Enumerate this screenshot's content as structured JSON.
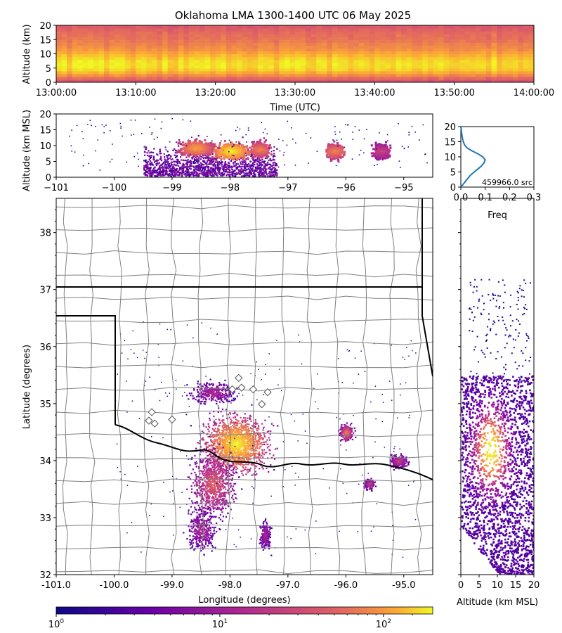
{
  "chart_data": [
    {
      "panel": "time-altitude",
      "type": "heatmap",
      "title": "Oklahoma LMA 1300-1400 UTC 06 May 2025",
      "xlabel": "Time (UTC)",
      "ylabel": "Altitude (km)",
      "xlim": [
        "13:00:00",
        "14:00:00"
      ],
      "ylim": [
        0,
        20
      ],
      "xticks": [
        "13:00:00",
        "13:10:00",
        "13:20:00",
        "13:30:00",
        "13:40:00",
        "13:50:00",
        "14:00:00"
      ],
      "yticks": [
        0,
        5,
        10,
        15,
        20
      ],
      "profile_rows": [
        0.2,
        0.35,
        0.55,
        0.75,
        0.92,
        1.0,
        1.0,
        0.98,
        0.9,
        0.8,
        0.7,
        0.6,
        0.55,
        0.5,
        0.45,
        0.4,
        0.38,
        0.35,
        0.3,
        0.25
      ]
    },
    {
      "panel": "longitude-altitude",
      "type": "heatmap",
      "xlabel": "",
      "ylabel": "Altitude (km MSL)",
      "xlim": [
        -101,
        -94.5
      ],
      "ylim": [
        0,
        20
      ],
      "xticks": [
        "−101",
        "−100",
        "−99",
        "−98",
        "−97",
        "−96",
        "−95"
      ],
      "yticks": [
        0,
        5,
        10,
        15,
        20
      ],
      "cores": [
        {
          "lon": -98.0,
          "alt": 8.5,
          "intensity": 1.0
        },
        {
          "lon": -98.6,
          "alt": 9.5,
          "intensity": 0.8
        },
        {
          "lon": -97.5,
          "alt": 9.0,
          "intensity": 0.7
        },
        {
          "lon": -96.2,
          "alt": 8.5,
          "intensity": 0.7
        },
        {
          "lon": -95.4,
          "alt": 8.5,
          "intensity": 0.5
        }
      ]
    },
    {
      "panel": "altitude-histogram",
      "type": "line",
      "xlabel": "Freq",
      "ylabel": "",
      "xlim": [
        0,
        0.3
      ],
      "ylim": [
        0,
        20
      ],
      "xticks": [
        "0.0",
        "0.1",
        "0.2",
        "0.3"
      ],
      "yticks": [
        0,
        5,
        10,
        15,
        20
      ],
      "annotation": "459966.0 src",
      "series": [
        {
          "color": "#1f77b4",
          "altitude": [
            0,
            1,
            2,
            3,
            4,
            5,
            6,
            7,
            8,
            9,
            10,
            11,
            12,
            13,
            14,
            15,
            16,
            17,
            18,
            19,
            20
          ],
          "freq": [
            0.0,
            0.01,
            0.02,
            0.03,
            0.04,
            0.055,
            0.07,
            0.085,
            0.095,
            0.1,
            0.09,
            0.07,
            0.045,
            0.025,
            0.015,
            0.01,
            0.007,
            0.005,
            0.003,
            0.002,
            0.0
          ]
        }
      ]
    },
    {
      "panel": "plan-view",
      "type": "heatmap",
      "xlabel": "Longitude (degrees)",
      "ylabel": "Latitude (degrees)",
      "xlim": [
        -101,
        -94.5
      ],
      "ylim": [
        32,
        38.6
      ],
      "xticks": [
        "-101.0",
        "-100.0",
        "-99.0",
        "-98.0",
        "-97.0",
        "-96.0",
        "-95.0"
      ],
      "yticks": [
        "32",
        "33",
        "34",
        "35",
        "36",
        "37",
        "38"
      ],
      "stations": [
        {
          "lon": -97.96,
          "lat": 35.25
        },
        {
          "lon": -97.8,
          "lat": 35.28
        },
        {
          "lon": -97.6,
          "lat": 35.25
        },
        {
          "lon": -97.85,
          "lat": 35.45
        },
        {
          "lon": -97.35,
          "lat": 35.2
        },
        {
          "lon": -97.45,
          "lat": 34.99
        },
        {
          "lon": -99.35,
          "lat": 34.85
        },
        {
          "lon": -99.4,
          "lat": 34.7
        },
        {
          "lon": -99.3,
          "lat": 34.65
        },
        {
          "lon": -99.0,
          "lat": 34.72
        }
      ],
      "clusters": [
        {
          "lon": -97.9,
          "lat": 34.3,
          "spread_lon": 0.9,
          "spread_lat": 0.8,
          "intensity": 1.0
        },
        {
          "lon": -98.3,
          "lat": 33.6,
          "spread_lon": 0.6,
          "spread_lat": 0.9,
          "intensity": 0.6
        },
        {
          "lon": -98.5,
          "lat": 32.8,
          "spread_lon": 0.4,
          "spread_lat": 0.6,
          "intensity": 0.4
        },
        {
          "lon": -97.4,
          "lat": 32.7,
          "spread_lon": 0.15,
          "spread_lat": 0.4,
          "intensity": 0.4
        },
        {
          "lon": -96.0,
          "lat": 34.5,
          "spread_lon": 0.18,
          "spread_lat": 0.22,
          "intensity": 0.7
        },
        {
          "lon": -95.1,
          "lat": 34.0,
          "spread_lon": 0.25,
          "spread_lat": 0.2,
          "intensity": 0.5
        },
        {
          "lon": -95.6,
          "lat": 33.6,
          "spread_lon": 0.15,
          "spread_lat": 0.15,
          "intensity": 0.5
        },
        {
          "lon": -98.3,
          "lat": 35.2,
          "spread_lon": 0.6,
          "spread_lat": 0.3,
          "intensity": 0.4
        }
      ]
    },
    {
      "panel": "altitude-latitude",
      "type": "heatmap",
      "xlabel": "Altitude (km MSL)",
      "ylabel": "",
      "xlim": [
        0,
        20
      ],
      "ylim": [
        32,
        38.6
      ],
      "xticks": [
        "0",
        "5",
        "10",
        "15",
        "20"
      ]
    },
    {
      "panel": "colorbar",
      "type": "heatmap",
      "scale": "log",
      "range": [
        1,
        200
      ],
      "ticks": [
        {
          "base": "10",
          "exp": "0"
        },
        {
          "base": "10",
          "exp": "1"
        },
        {
          "base": "10",
          "exp": "2"
        }
      ],
      "colormap": "plasma"
    }
  ]
}
